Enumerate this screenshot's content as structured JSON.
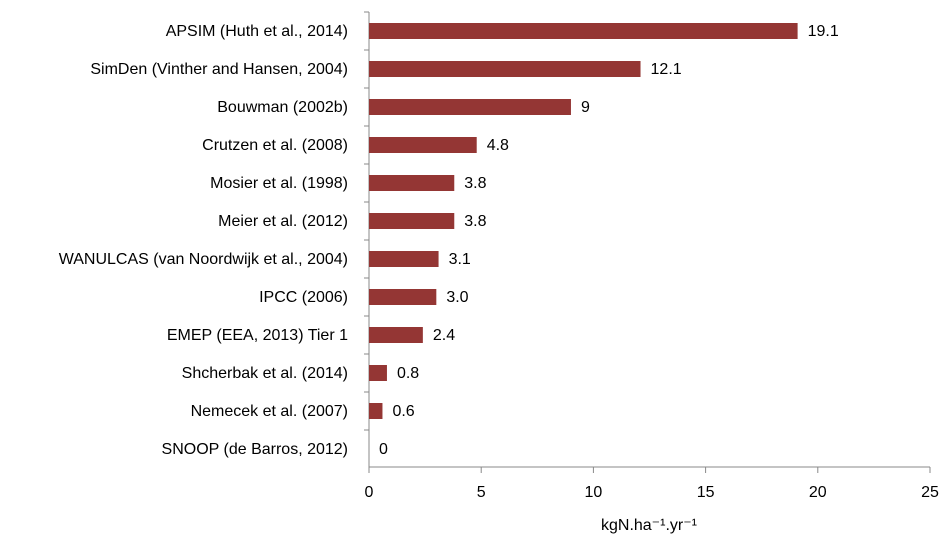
{
  "chart_data": {
    "type": "barh",
    "categories": [
      "APSIM (Huth et al., 2014)",
      "SimDen (Vinther and Hansen, 2004)",
      "Bouwman (2002b)",
      "Crutzen et al. (2008)",
      "Mosier et al. (1998)",
      "Meier et al. (2012)",
      "WANULCAS (van Noordwijk et al., 2004)",
      "IPCC (2006)",
      "EMEP (EEA, 2013) Tier 1",
      "Shcherbak et al. (2014)",
      "Nemecek et al. (2007)",
      "SNOOP (de Barros, 2012)"
    ],
    "values": [
      19.1,
      12.1,
      9,
      4.8,
      3.8,
      3.8,
      3.1,
      3.0,
      2.4,
      0.8,
      0.6,
      0
    ],
    "value_labels": [
      "19.1",
      "12.1",
      "9",
      "4.8",
      "3.8",
      "3.8",
      "3.1",
      "3.0",
      "2.4",
      "0.8",
      "0.6",
      "0"
    ],
    "color": "#943634",
    "x_label": "kgN.ha⁻¹.yr⁻¹",
    "xlim": [
      0,
      25
    ],
    "xticks": [
      0,
      5,
      10,
      15,
      20,
      25
    ],
    "grid": false
  }
}
